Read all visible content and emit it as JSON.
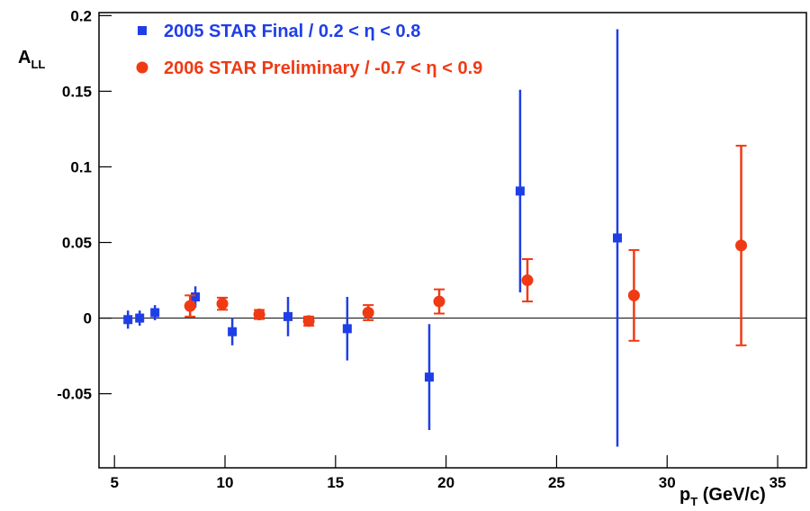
{
  "chart_data": {
    "type": "scatter",
    "x_label": "p",
    "x_label_sub": "T",
    "x_label_rest": " (GeV/c)",
    "y_label": "A",
    "y_label_sub": "LL",
    "xlim": [
      4.3,
      36.3
    ],
    "ylim": [
      -0.099,
      0.202
    ],
    "xticks": [
      5,
      10,
      15,
      20,
      25,
      30,
      35
    ],
    "yticks": [
      -0.05,
      0,
      0.05,
      0.1,
      0.15,
      0.2
    ],
    "series": [
      {
        "name": "2005 STAR Final / 0.2 < η < 0.8",
        "color": "#1f3fe6",
        "marker": "square",
        "x": [
          5.61,
          6.14,
          6.83,
          8.66,
          10.33,
          12.85,
          15.53,
          19.24,
          23.35,
          27.75
        ],
        "values": [
          -0.001,
          0.0,
          0.0036,
          0.014,
          -0.009,
          0.001,
          -0.007,
          -0.039,
          0.084,
          0.053
        ],
        "errors": [
          0.006,
          0.005,
          0.005,
          0.007,
          0.009,
          0.013,
          0.021,
          0.035,
          0.067,
          0.138
        ]
      },
      {
        "name": "2006 STAR Preliminary / -0.7 < η < 0.9",
        "color": "#f03a14",
        "marker": "circle",
        "x": [
          8.42,
          9.88,
          11.55,
          13.79,
          16.48,
          19.69,
          23.68,
          28.5,
          33.35
        ],
        "values": [
          0.008,
          0.0095,
          0.0024,
          -0.002,
          0.0036,
          0.011,
          0.025,
          0.015,
          0.048
        ],
        "errors": [
          0.007,
          0.004,
          0.003,
          0.003,
          0.005,
          0.008,
          0.014,
          0.03,
          0.066
        ]
      }
    ]
  }
}
